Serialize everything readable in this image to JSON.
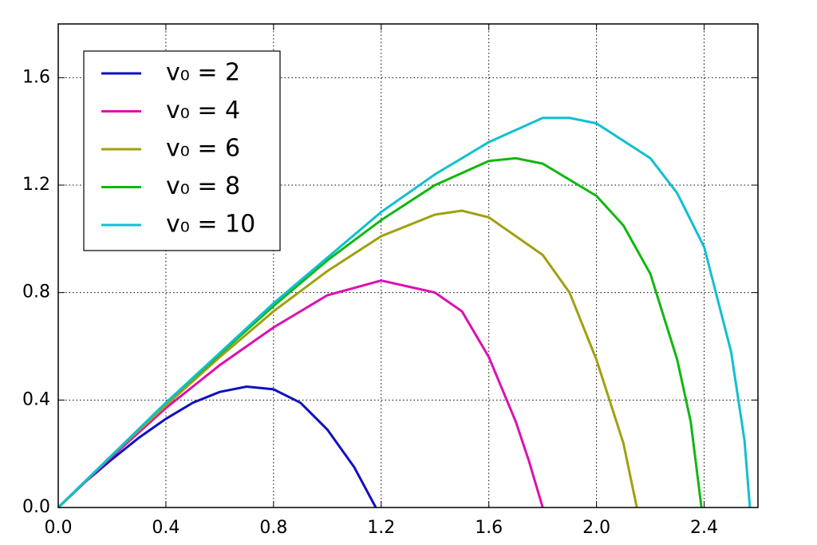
{
  "chart_data": {
    "type": "line",
    "xlim": [
      0,
      2.6
    ],
    "ylim": [
      0,
      1.8
    ],
    "xticks": [
      {
        "value": 0,
        "label": "0.0"
      },
      0.4,
      0.8,
      1.2,
      1.6,
      {
        "value": 2,
        "label": "2.0"
      },
      2.4
    ],
    "yticks": [
      {
        "value": 0,
        "label": "0.0"
      },
      0.4,
      0.8,
      1.2,
      1.6
    ],
    "grid": true,
    "legend": "upper left",
    "series": [
      {
        "name": "v₀ = 2",
        "color": "#1010c0",
        "x": [
          0,
          0.1,
          0.2,
          0.3,
          0.4,
          0.5,
          0.6,
          0.7,
          0.8,
          0.9,
          1.0,
          1.1,
          1.18
        ],
        "values": [
          0,
          0.095,
          0.18,
          0.26,
          0.33,
          0.39,
          0.43,
          0.45,
          0.44,
          0.39,
          0.29,
          0.15,
          0
        ]
      },
      {
        "name": "v₀ = 4",
        "color": "#dd10b0",
        "x": [
          0,
          0.2,
          0.4,
          0.6,
          0.8,
          1.0,
          1.2,
          1.4,
          1.5,
          1.6,
          1.7,
          1.75,
          1.8
        ],
        "values": [
          0,
          0.19,
          0.37,
          0.53,
          0.67,
          0.79,
          0.845,
          0.8,
          0.73,
          0.56,
          0.32,
          0.17,
          0
        ]
      },
      {
        "name": "v₀ = 6",
        "color": "#a0a010",
        "x": [
          0,
          0.2,
          0.4,
          0.6,
          0.8,
          1.0,
          1.2,
          1.4,
          1.5,
          1.6,
          1.8,
          1.9,
          2.0,
          2.1,
          2.15
        ],
        "values": [
          0,
          0.195,
          0.38,
          0.56,
          0.73,
          0.88,
          1.01,
          1.09,
          1.105,
          1.08,
          0.94,
          0.8,
          0.55,
          0.24,
          0
        ]
      },
      {
        "name": "v₀ = 8",
        "color": "#10b810",
        "x": [
          0,
          0.4,
          0.8,
          1.0,
          1.2,
          1.4,
          1.6,
          1.7,
          1.8,
          2.0,
          2.1,
          2.2,
          2.3,
          2.35,
          2.39
        ],
        "values": [
          0,
          0.39,
          0.75,
          0.92,
          1.07,
          1.2,
          1.29,
          1.3,
          1.28,
          1.16,
          1.05,
          0.87,
          0.55,
          0.32,
          0
        ]
      },
      {
        "name": "v₀ = 10",
        "color": "#10c0d0",
        "x": [
          0,
          0.4,
          0.8,
          1.2,
          1.4,
          1.6,
          1.8,
          1.9,
          2.0,
          2.2,
          2.3,
          2.4,
          2.5,
          2.55,
          2.57
        ],
        "values": [
          0,
          0.39,
          0.76,
          1.1,
          1.24,
          1.36,
          1.45,
          1.45,
          1.43,
          1.3,
          1.17,
          0.97,
          0.58,
          0.25,
          0
        ]
      }
    ]
  }
}
